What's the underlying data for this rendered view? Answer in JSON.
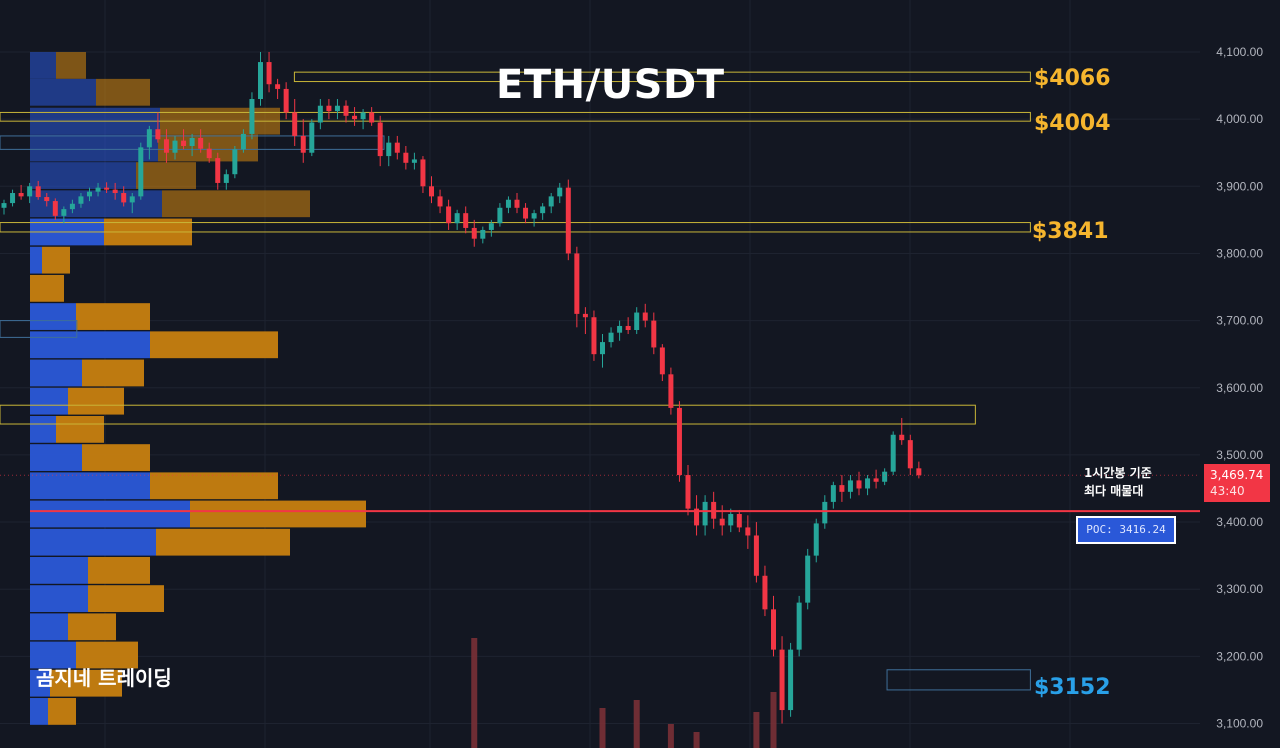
{
  "header": {
    "title": "ETH/USDT"
  },
  "watermark": {
    "brand": "곰지네 트레이딩"
  },
  "levels": [
    {
      "label": "$4066",
      "price": 4066,
      "color": "#f5b52e",
      "kind": "resistance"
    },
    {
      "label": "$4004",
      "price": 4004,
      "color": "#f5b52e",
      "kind": "resistance"
    },
    {
      "label": "$3841",
      "price": 3841,
      "color": "#f5b52e",
      "kind": "resistance"
    },
    {
      "label": "$3152",
      "price": 3152,
      "color": "#29a0e8",
      "kind": "support"
    }
  ],
  "annotation": {
    "line1": "1시간봉 기준",
    "line2": "최다 매물대"
  },
  "poc": {
    "label": "POC: 3416.24",
    "price": 3416.24,
    "color": "#f23645"
  },
  "last_price": {
    "value": "3,469.74",
    "countdown": "43:40",
    "price": 3469.74,
    "color": "#f23645"
  },
  "colors": {
    "background": "#131722",
    "up": "#26a69a",
    "down": "#f23645",
    "vp_buy": "#2a58d8",
    "vp_sell": "#c77f10",
    "grid": "#1e2330"
  },
  "chart_data": {
    "type": "candlestick",
    "symbol": "ETH/USDT",
    "timeframe": "1시간봉",
    "y_axis": {
      "ticks": [
        4100,
        4000,
        3900,
        3800,
        3700,
        3600,
        3500,
        3400,
        3300,
        3200,
        3100
      ],
      "tick_labels": [
        "4,100.00",
        "4,000.00",
        "3,900.00",
        "3,800.00",
        "3,700.00",
        "3,600.00",
        "3,500.00",
        "3,400.00",
        "3,300.00",
        "3,200.00",
        "3,100.00"
      ],
      "ylim": [
        3060,
        4140
      ],
      "position": "right"
    },
    "candles": [
      [
        3868,
        3880,
        3858,
        3875
      ],
      [
        3875,
        3895,
        3870,
        3890
      ],
      [
        3890,
        3902,
        3880,
        3885
      ],
      [
        3885,
        3905,
        3875,
        3900
      ],
      [
        3900,
        3908,
        3880,
        3884
      ],
      [
        3884,
        3890,
        3870,
        3878
      ],
      [
        3878,
        3882,
        3850,
        3856
      ],
      [
        3856,
        3870,
        3845,
        3866
      ],
      [
        3866,
        3880,
        3860,
        3874
      ],
      [
        3874,
        3890,
        3868,
        3885
      ],
      [
        3885,
        3898,
        3878,
        3892
      ],
      [
        3892,
        3905,
        3885,
        3898
      ],
      [
        3898,
        3906,
        3890,
        3895
      ],
      [
        3895,
        3905,
        3880,
        3890
      ],
      [
        3890,
        3900,
        3870,
        3876
      ],
      [
        3876,
        3890,
        3860,
        3885
      ],
      [
        3885,
        3965,
        3880,
        3958
      ],
      [
        3958,
        3990,
        3940,
        3985
      ],
      [
        3985,
        4010,
        3965,
        3970
      ],
      [
        3970,
        3985,
        3935,
        3950
      ],
      [
        3950,
        3975,
        3940,
        3968
      ],
      [
        3968,
        3985,
        3955,
        3960
      ],
      [
        3960,
        3978,
        3945,
        3972
      ],
      [
        3972,
        3985,
        3950,
        3956
      ],
      [
        3956,
        3965,
        3935,
        3942
      ],
      [
        3942,
        3950,
        3895,
        3905
      ],
      [
        3905,
        3925,
        3895,
        3918
      ],
      [
        3918,
        3960,
        3912,
        3955
      ],
      [
        3955,
        3985,
        3950,
        3978
      ],
      [
        3978,
        4040,
        3970,
        4030
      ],
      [
        4030,
        4100,
        4020,
        4085
      ],
      [
        4085,
        4100,
        4040,
        4052
      ],
      [
        4052,
        4060,
        4030,
        4045
      ],
      [
        4045,
        4055,
        4000,
        4010
      ],
      [
        4010,
        4030,
        3960,
        3975
      ],
      [
        3975,
        4000,
        3935,
        3950
      ],
      [
        3950,
        4000,
        3945,
        3995
      ],
      [
        3995,
        4030,
        3985,
        4020
      ],
      [
        4020,
        4030,
        4000,
        4012
      ],
      [
        4012,
        4030,
        4000,
        4020
      ],
      [
        4020,
        4028,
        3995,
        4005
      ],
      [
        4005,
        4018,
        3990,
        4000
      ],
      [
        4000,
        4015,
        3985,
        4010
      ],
      [
        4010,
        4018,
        3990,
        3995
      ],
      [
        3995,
        4005,
        3930,
        3945
      ],
      [
        3945,
        3975,
        3930,
        3965
      ],
      [
        3965,
        3975,
        3940,
        3950
      ],
      [
        3950,
        3960,
        3925,
        3935
      ],
      [
        3935,
        3950,
        3925,
        3940
      ],
      [
        3940,
        3945,
        3890,
        3900
      ],
      [
        3900,
        3915,
        3875,
        3885
      ],
      [
        3885,
        3895,
        3860,
        3870
      ],
      [
        3870,
        3880,
        3835,
        3845
      ],
      [
        3845,
        3865,
        3835,
        3860
      ],
      [
        3860,
        3870,
        3830,
        3838
      ],
      [
        3838,
        3850,
        3810,
        3822
      ],
      [
        3822,
        3840,
        3815,
        3835
      ],
      [
        3835,
        3850,
        3825,
        3845
      ],
      [
        3845,
        3875,
        3840,
        3868
      ],
      [
        3868,
        3885,
        3860,
        3880
      ],
      [
        3880,
        3890,
        3860,
        3868
      ],
      [
        3868,
        3875,
        3845,
        3852
      ],
      [
        3852,
        3865,
        3840,
        3860
      ],
      [
        3860,
        3875,
        3850,
        3870
      ],
      [
        3870,
        3890,
        3860,
        3885
      ],
      [
        3885,
        3905,
        3875,
        3898
      ],
      [
        3898,
        3910,
        3790,
        3800
      ],
      [
        3800,
        3810,
        3690,
        3710
      ],
      [
        3710,
        3720,
        3680,
        3705
      ],
      [
        3705,
        3715,
        3640,
        3650
      ],
      [
        3650,
        3680,
        3630,
        3668
      ],
      [
        3668,
        3690,
        3660,
        3682
      ],
      [
        3682,
        3700,
        3670,
        3692
      ],
      [
        3692,
        3705,
        3680,
        3686
      ],
      [
        3686,
        3720,
        3680,
        3712
      ],
      [
        3712,
        3725,
        3690,
        3700
      ],
      [
        3700,
        3712,
        3650,
        3660
      ],
      [
        3660,
        3665,
        3610,
        3620
      ],
      [
        3620,
        3630,
        3560,
        3570
      ],
      [
        3570,
        3580,
        3460,
        3470
      ],
      [
        3470,
        3485,
        3410,
        3420
      ],
      [
        3420,
        3440,
        3380,
        3395
      ],
      [
        3395,
        3440,
        3380,
        3430
      ],
      [
        3430,
        3445,
        3390,
        3405
      ],
      [
        3405,
        3425,
        3380,
        3395
      ],
      [
        3395,
        3420,
        3385,
        3412
      ],
      [
        3412,
        3418,
        3385,
        3392
      ],
      [
        3392,
        3410,
        3360,
        3380
      ],
      [
        3380,
        3400,
        3310,
        3320
      ],
      [
        3320,
        3335,
        3260,
        3270
      ],
      [
        3270,
        3290,
        3200,
        3210
      ],
      [
        3210,
        3230,
        3100,
        3120
      ],
      [
        3120,
        3220,
        3110,
        3210
      ],
      [
        3210,
        3290,
        3200,
        3280
      ],
      [
        3280,
        3360,
        3270,
        3350
      ],
      [
        3350,
        3405,
        3340,
        3398
      ],
      [
        3398,
        3440,
        3390,
        3430
      ],
      [
        3430,
        3460,
        3420,
        3455
      ],
      [
        3455,
        3470,
        3430,
        3445
      ],
      [
        3445,
        3470,
        3435,
        3462
      ],
      [
        3462,
        3475,
        3440,
        3450
      ],
      [
        3450,
        3470,
        3440,
        3465
      ],
      [
        3465,
        3478,
        3450,
        3460
      ],
      [
        3460,
        3480,
        3455,
        3475
      ],
      [
        3475,
        3535,
        3470,
        3530
      ],
      [
        3530,
        3555,
        3515,
        3522
      ],
      [
        3522,
        3530,
        3470,
        3480
      ],
      [
        3480,
        3490,
        3465,
        3469.74
      ]
    ],
    "volume_profile": [
      {
        "price": 4080,
        "buy": 26,
        "sell": 30
      },
      {
        "price": 4040,
        "buy": 66,
        "sell": 54
      },
      {
        "price": 3997,
        "buy": 130,
        "sell": 120
      },
      {
        "price": 3957,
        "buy": 128,
        "sell": 100
      },
      {
        "price": 3916,
        "buy": 106,
        "sell": 60
      },
      {
        "price": 3874,
        "buy": 132,
        "sell": 148
      },
      {
        "price": 3832,
        "buy": 74,
        "sell": 88
      },
      {
        "price": 3790,
        "buy": 12,
        "sell": 28
      },
      {
        "price": 3748,
        "buy": 0,
        "sell": 34
      },
      {
        "price": 3706,
        "buy": 46,
        "sell": 74
      },
      {
        "price": 3664,
        "buy": 120,
        "sell": 128
      },
      {
        "price": 3622,
        "buy": 52,
        "sell": 62
      },
      {
        "price": 3580,
        "buy": 38,
        "sell": 56
      },
      {
        "price": 3538,
        "buy": 26,
        "sell": 48
      },
      {
        "price": 3496,
        "buy": 52,
        "sell": 68
      },
      {
        "price": 3454,
        "buy": 120,
        "sell": 128
      },
      {
        "price": 3412,
        "buy": 160,
        "sell": 176
      },
      {
        "price": 3370,
        "buy": 126,
        "sell": 134
      },
      {
        "price": 3328,
        "buy": 58,
        "sell": 62
      },
      {
        "price": 3286,
        "buy": 58,
        "sell": 76
      },
      {
        "price": 3244,
        "buy": 38,
        "sell": 48
      },
      {
        "price": 3202,
        "buy": 46,
        "sell": 62
      },
      {
        "price": 3160,
        "buy": 20,
        "sell": 72
      },
      {
        "price": 3118,
        "buy": 18,
        "sell": 28
      }
    ],
    "zones": [
      {
        "p1": 4070,
        "p2": 4056,
        "color": "#c9b638",
        "from": 0.23,
        "to": 0.805
      },
      {
        "p1": 4010,
        "p2": 3997,
        "color": "#c9b638",
        "from": 0.0,
        "to": 0.805
      },
      {
        "p1": 3846,
        "p2": 3832,
        "color": "#c9b638",
        "from": 0.0,
        "to": 0.805
      },
      {
        "p1": 3574,
        "p2": 3546,
        "color": "#c9b638",
        "from": 0.0,
        "to": 0.762
      },
      {
        "p1": 3180,
        "p2": 3150,
        "color": "#3f6f99",
        "from": 0.693,
        "to": 0.805
      },
      {
        "p1": 3975,
        "p2": 3955,
        "color": "#3f6f99",
        "from": 0.0,
        "to": 0.3
      },
      {
        "p1": 3700,
        "p2": 3675,
        "color": "#3f6f99",
        "from": 0.0,
        "to": 0.06
      }
    ],
    "volume_bars": [
      {
        "idx": 55,
        "v": 0.55
      },
      {
        "idx": 70,
        "v": 0.2
      },
      {
        "idx": 74,
        "v": 0.24
      },
      {
        "idx": 78,
        "v": 0.12
      },
      {
        "idx": 81,
        "v": 0.08
      },
      {
        "idx": 88,
        "v": 0.18
      },
      {
        "idx": 90,
        "v": 0.28
      }
    ]
  }
}
